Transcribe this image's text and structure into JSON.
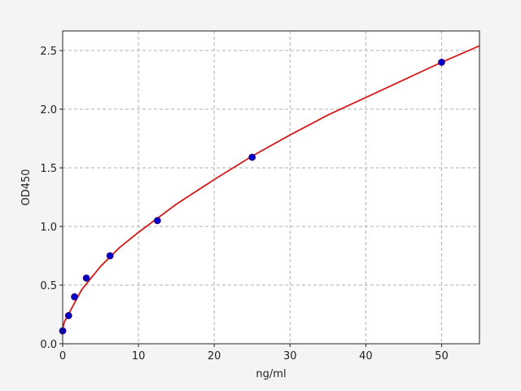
{
  "chart_data": {
    "type": "scatter",
    "xlabel": "ng/ml",
    "ylabel": "OD450",
    "xlim": [
      0,
      55
    ],
    "ylim": [
      0,
      2.667
    ],
    "xticks": [
      0,
      10,
      20,
      30,
      40,
      50
    ],
    "yticks": [
      {
        "value": 0,
        "label": "0.0"
      },
      {
        "value": 0.5,
        "label": "0.5"
      },
      {
        "value": 1,
        "label": "1.0"
      },
      {
        "value": 1.5,
        "label": "1.5"
      },
      {
        "value": 2,
        "label": "2.0"
      },
      {
        "value": 2.5,
        "label": "2.5"
      }
    ],
    "grid": true,
    "series": [
      {
        "type": "scatter",
        "color": "#0000cc",
        "x": [
          0,
          0.78,
          1.56,
          3.125,
          6.25,
          12.5,
          25,
          50
        ],
        "values": [
          0.11,
          0.24,
          0.4,
          0.56,
          0.75,
          1.05,
          1.59,
          2.4
        ]
      },
      {
        "type": "line",
        "color": "#d61a1a",
        "x": [
          0,
          0.25,
          1,
          2.5,
          5,
          7.5,
          10,
          15,
          20,
          25,
          30,
          35,
          40,
          45,
          50,
          55
        ],
        "values": [
          0.13,
          0.19,
          0.28,
          0.46,
          0.66,
          0.82,
          0.95,
          1.19,
          1.4,
          1.6,
          1.78,
          1.95,
          2.1,
          2.25,
          2.4,
          2.54
        ]
      }
    ]
  }
}
